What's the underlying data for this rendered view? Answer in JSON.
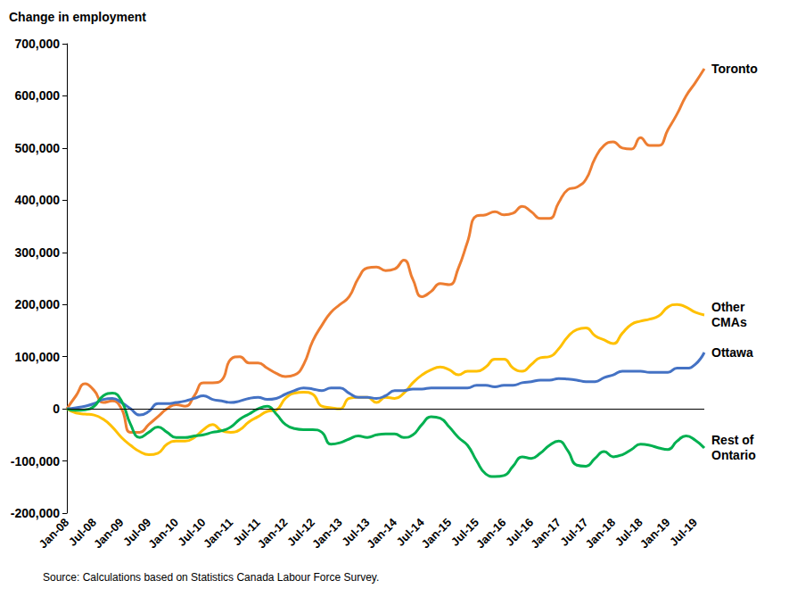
{
  "chart_data": {
    "type": "line",
    "ylabel": "Change in employment",
    "source": "Source: Calculations based on Statistics Canada Labour Force Survey.",
    "x": [
      "Jan-08",
      null,
      null,
      "Jul-08",
      null,
      null,
      "Jan-09",
      null,
      null,
      "Jul-09",
      null,
      null,
      "Jan-10",
      null,
      null,
      "Jul-10",
      null,
      null,
      "Jan-11",
      null,
      null,
      "Jul-11",
      null,
      null,
      "Jan-12",
      null,
      null,
      "Jul-12",
      null,
      null,
      "Jan-13",
      null,
      null,
      "Jul-13",
      null,
      null,
      "Jan-14",
      null,
      null,
      "Jul-14",
      null,
      null,
      "Jan-15",
      null,
      null,
      "Jul-15",
      null,
      null,
      "Jan-16",
      null,
      null,
      "Jul-16",
      null,
      null,
      "Jan-17",
      null,
      null,
      "Jul-17",
      null,
      null,
      "Jan-18",
      null,
      null,
      "Jul-18",
      null,
      null,
      "Jan-19",
      null,
      null,
      "Jul-19",
      null
    ],
    "series": [
      {
        "name": "Toronto",
        "color": "#ED7D31",
        "values": [
          0,
          25000,
          48000,
          35000,
          12000,
          15000,
          0,
          -45000,
          -45000,
          -30000,
          -15000,
          0,
          8000,
          5000,
          25000,
          50000,
          50000,
          55000,
          95000,
          100000,
          88000,
          88000,
          78000,
          68000,
          62000,
          65000,
          85000,
          130000,
          160000,
          185000,
          200000,
          215000,
          250000,
          270000,
          272000,
          265000,
          268000,
          285000,
          248000,
          215000,
          225000,
          240000,
          238000,
          270000,
          320000,
          370000,
          372000,
          378000,
          372000,
          375000,
          388000,
          378000,
          365000,
          365000,
          395000,
          420000,
          425000,
          440000,
          480000,
          505000,
          512000,
          500000,
          498000,
          520000,
          505000,
          505000,
          535000,
          565000,
          600000,
          625000,
          652000
        ]
      },
      {
        "name": "Other CMAs",
        "color": "#FFC000",
        "values": [
          0,
          -8000,
          -10000,
          -12000,
          -20000,
          -35000,
          -55000,
          -70000,
          -82000,
          -88000,
          -85000,
          -68000,
          -62000,
          -62000,
          -55000,
          -40000,
          -30000,
          -42000,
          -45000,
          -40000,
          -25000,
          -15000,
          -5000,
          -2000,
          20000,
          30000,
          32000,
          28000,
          5000,
          2000,
          0,
          20000,
          22000,
          22000,
          12000,
          22000,
          20000,
          30000,
          50000,
          65000,
          75000,
          80000,
          75000,
          65000,
          72000,
          72000,
          80000,
          95000,
          95000,
          78000,
          72000,
          85000,
          98000,
          100000,
          115000,
          138000,
          152000,
          155000,
          140000,
          132000,
          125000,
          145000,
          162000,
          168000,
          172000,
          178000,
          195000,
          200000,
          195000,
          185000,
          180000
        ]
      },
      {
        "name": "Ottawa",
        "color": "#4472C4",
        "values": [
          0,
          2000,
          5000,
          10000,
          18000,
          20000,
          12000,
          0,
          -12000,
          -5000,
          10000,
          10000,
          12000,
          15000,
          20000,
          25000,
          18000,
          15000,
          12000,
          15000,
          20000,
          22000,
          18000,
          20000,
          28000,
          35000,
          40000,
          38000,
          35000,
          40000,
          40000,
          30000,
          22000,
          22000,
          20000,
          25000,
          35000,
          35000,
          38000,
          38000,
          40000,
          40000,
          40000,
          40000,
          40000,
          45000,
          45000,
          42000,
          45000,
          45000,
          50000,
          52000,
          55000,
          55000,
          58000,
          57000,
          55000,
          52000,
          52000,
          60000,
          65000,
          72000,
          72000,
          72000,
          70000,
          70000,
          70000,
          78000,
          78000,
          85000,
          108000
        ]
      },
      {
        "name": "Rest of Ontario",
        "color": "#00B050",
        "values": [
          0,
          -3000,
          -2000,
          5000,
          25000,
          30000,
          15000,
          -30000,
          -55000,
          -45000,
          -35000,
          -45000,
          -55000,
          -55000,
          -52000,
          -50000,
          -45000,
          -42000,
          -35000,
          -20000,
          -10000,
          0,
          5000,
          -10000,
          -30000,
          -38000,
          -40000,
          -40000,
          -45000,
          -68000,
          -65000,
          -58000,
          -52000,
          -55000,
          -50000,
          -48000,
          -48000,
          -55000,
          -50000,
          -30000,
          -15000,
          -18000,
          -35000,
          -55000,
          -70000,
          -100000,
          -125000,
          -130000,
          -128000,
          -110000,
          -92000,
          -95000,
          -85000,
          -70000,
          -62000,
          -80000,
          -108000,
          -110000,
          -95000,
          -82000,
          -92000,
          -88000,
          -78000,
          -68000,
          -70000,
          -75000,
          -78000,
          -62000,
          -52000,
          -60000,
          -75000
        ]
      }
    ],
    "ylim": [
      -200000,
      700000
    ],
    "yticks": [
      {
        "value": -200000,
        "label": "-200,000"
      },
      {
        "value": -100000,
        "label": "-100,000"
      },
      0,
      {
        "value": 100000,
        "label": "100,000"
      },
      {
        "value": 200000,
        "label": "200,000"
      },
      {
        "value": 300000,
        "label": "300,000"
      },
      {
        "value": 400000,
        "label": "400,000"
      },
      {
        "value": 500000,
        "label": "500,000"
      },
      {
        "value": 600000,
        "label": "600,000"
      },
      {
        "value": 700000,
        "label": "700,000"
      }
    ],
    "grid": false
  }
}
